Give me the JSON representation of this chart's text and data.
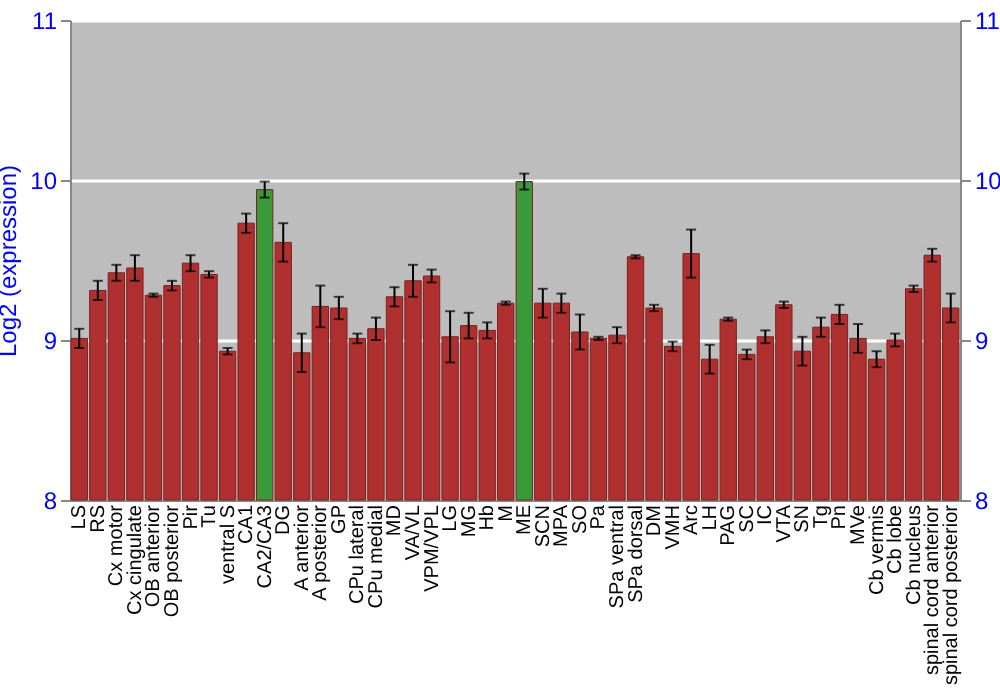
{
  "chart_data": {
    "type": "bar",
    "ylabel": "Log2 (expression)",
    "categories": [
      "LS",
      "RS",
      "Cx motor",
      "Cx cingulate",
      "OB anterior",
      "OB posterior",
      "Pir",
      "Tu",
      "ventral S",
      "CA1",
      "CA2/CA3",
      "DG",
      "A anterior",
      "A posterior",
      "GP",
      "CPu lateral",
      "CPu medial",
      "MD",
      "VA/VL",
      "VPM/VPL",
      "LG",
      "MG",
      "Hb",
      "M",
      "ME",
      "SCN",
      "MPA",
      "SO",
      "Pa",
      "SPa ventral",
      "SPa dorsal",
      "DM",
      "VMH",
      "Arc",
      "LH",
      "PAG",
      "SC",
      "IC",
      "VTA",
      "SN",
      "Tg",
      "Pn",
      "MVe",
      "Cb vermis",
      "Cb lobe",
      "Cb nucleus",
      "spinal cord anterior",
      "spinal cord posterior"
    ],
    "values": [
      9.01,
      9.31,
      9.42,
      9.45,
      9.28,
      9.34,
      9.48,
      9.41,
      8.93,
      9.73,
      9.94,
      9.61,
      8.92,
      9.21,
      9.2,
      9.01,
      9.07,
      9.27,
      9.37,
      9.4,
      9.02,
      9.09,
      9.06,
      9.23,
      9.99,
      9.23,
      9.23,
      9.05,
      9.01,
      9.03,
      9.52,
      9.2,
      8.96,
      9.54,
      8.88,
      9.13,
      8.91,
      9.02,
      9.22,
      8.93,
      9.08,
      9.16,
      9.01,
      8.88,
      9.0,
      9.32,
      9.53,
      9.2
    ],
    "errors": [
      0.06,
      0.06,
      0.05,
      0.08,
      0.01,
      0.03,
      0.05,
      0.02,
      0.02,
      0.06,
      0.05,
      0.12,
      0.12,
      0.13,
      0.07,
      0.03,
      0.07,
      0.06,
      0.1,
      0.04,
      0.16,
      0.08,
      0.05,
      0.01,
      0.05,
      0.09,
      0.06,
      0.11,
      0.01,
      0.05,
      0.01,
      0.02,
      0.03,
      0.15,
      0.09,
      0.01,
      0.03,
      0.04,
      0.02,
      0.09,
      0.06,
      0.06,
      0.09,
      0.05,
      0.04,
      0.02,
      0.04,
      0.09
    ],
    "colors": [
      "#b03030",
      "#b03030",
      "#b03030",
      "#b03030",
      "#b03030",
      "#b03030",
      "#b03030",
      "#b03030",
      "#b03030",
      "#b03030",
      "#3a9a3a",
      "#b03030",
      "#b03030",
      "#b03030",
      "#b03030",
      "#b03030",
      "#b03030",
      "#b03030",
      "#b03030",
      "#b03030",
      "#b03030",
      "#b03030",
      "#b03030",
      "#b03030",
      "#3a9a3a",
      "#b03030",
      "#b03030",
      "#b03030",
      "#b03030",
      "#b03030",
      "#b03030",
      "#b03030",
      "#b03030",
      "#b03030",
      "#b03030",
      "#b03030",
      "#b03030",
      "#b03030",
      "#b03030",
      "#b03030",
      "#b03030",
      "#b03030",
      "#b03030",
      "#b03030",
      "#b03030",
      "#b03030",
      "#b03030",
      "#b03030"
    ],
    "ylim": [
      8,
      11
    ],
    "yticks": [
      8,
      9,
      10,
      11
    ],
    "y2lim": [
      8,
      11
    ],
    "y2ticks": [
      8,
      9,
      10,
      11
    ],
    "grid": "y"
  }
}
